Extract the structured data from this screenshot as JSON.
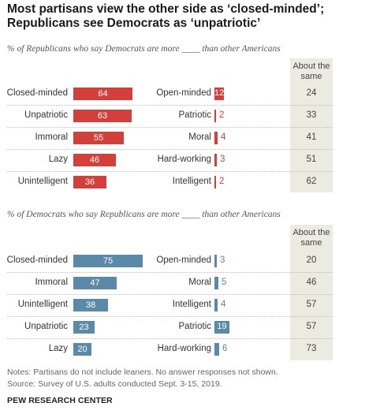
{
  "title": "Most partisans view the other side as ‘closed-minded’; Republicans see Democrats as ‘unpatriotic’",
  "colors": {
    "republican": "#d33f3a",
    "democrat": "#5a8aa8",
    "same_bg": "#ecebe1"
  },
  "chart_data": [
    {
      "type": "bar",
      "subtitle": "% of Republicans who say Democrats are more ____ than other Americans",
      "same_header": "About the same",
      "xlim": [
        0,
        100
      ],
      "rows": [
        {
          "left_label": "Closed-minded",
          "left_value": 64,
          "right_label": "Open-minded",
          "right_value": 12,
          "same": 24
        },
        {
          "left_label": "Unpatriotic",
          "left_value": 63,
          "right_label": "Patriotic",
          "right_value": 2,
          "same": 33
        },
        {
          "left_label": "Immoral",
          "left_value": 55,
          "right_label": "Moral",
          "right_value": 4,
          "same": 41
        },
        {
          "left_label": "Lazy",
          "left_value": 46,
          "right_label": "Hard-working",
          "right_value": 3,
          "same": 51
        },
        {
          "left_label": "Unintelligent",
          "left_value": 36,
          "right_label": "Intelligent",
          "right_value": 2,
          "same": 62
        }
      ]
    },
    {
      "type": "bar",
      "subtitle": "% of Democrats who say Republicans are more ____ than other Americans",
      "same_header": "About the same",
      "xlim": [
        0,
        100
      ],
      "rows": [
        {
          "left_label": "Closed-minded",
          "left_value": 75,
          "right_label": "Open-minded",
          "right_value": 3,
          "same": 20
        },
        {
          "left_label": "Immoral",
          "left_value": 47,
          "right_label": "Moral",
          "right_value": 5,
          "same": 46
        },
        {
          "left_label": "Unintelligent",
          "left_value": 38,
          "right_label": "Intelligent",
          "right_value": 4,
          "same": 57
        },
        {
          "left_label": "Unpatriotic",
          "left_value": 23,
          "right_label": "Patriotic",
          "right_value": 19,
          "same": 57
        },
        {
          "left_label": "Lazy",
          "left_value": 20,
          "right_label": "Hard-working",
          "right_value": 6,
          "same": 73
        }
      ]
    }
  ],
  "notes": "Notes: Partisans do not include leaners. No answer responses not shown.",
  "source": "Source: Survey of U.S. adults conducted Sept. 3-15, 2019.",
  "organization": "PEW RESEARCH CENTER"
}
